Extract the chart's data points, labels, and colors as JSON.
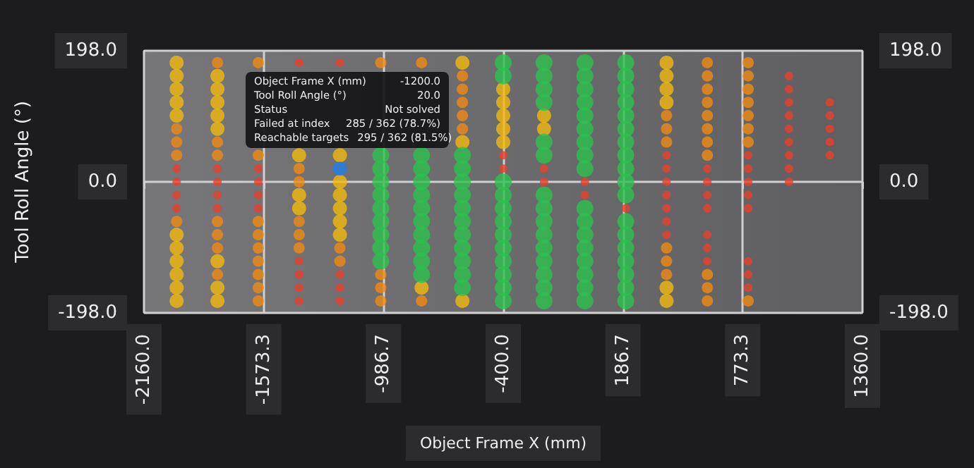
{
  "chart_data": {
    "type": "scatter",
    "xlabel": "Object Frame X (mm)",
    "ylabel": "Tool Roll Angle (°)",
    "xlim": [
      -2160,
      1360
    ],
    "xticks": [
      {
        "value": -2160,
        "label": "-2160.0"
      },
      {
        "value": -1573.3,
        "label": "-1573.3"
      },
      {
        "value": -986.7,
        "label": "-986.7"
      },
      {
        "value": -400,
        "label": "-400.0"
      },
      {
        "value": 186.7,
        "label": "186.7"
      },
      {
        "value": 773.3,
        "label": "773.3"
      },
      {
        "value": 1360,
        "label": "1360.0"
      }
    ],
    "ylim": [
      -198,
      198
    ],
    "yticks": [
      {
        "value": -198,
        "label": "-198.0"
      },
      {
        "value": 0,
        "label": "0.0"
      },
      {
        "value": 198,
        "label": "198.0"
      }
    ],
    "y2lim": [
      -198,
      198
    ],
    "y2ticks": [
      {
        "value": -198,
        "label": "-198.0"
      },
      {
        "value": 0,
        "label": "0.0"
      },
      {
        "value": 198,
        "label": "198.0"
      }
    ],
    "grid": true,
    "marker": "circle",
    "annotations": [
      "Object Frame X (mm)",
      "-1200.0",
      "Tool Roll Angle (°)",
      "20.0",
      "Status",
      "Not solved",
      "Failed at index",
      "285 / 362 (78.7%)",
      "Reachable targets",
      "295 / 362 (81.5%)"
    ],
    "series": [
      {
        "color": "#f2b90c",
        "x": [
          -2000,
          -2000,
          -2000,
          -2000,
          -2000,
          -2000,
          -2000,
          -2000,
          -2000,
          -2000,
          -2000,
          -1800,
          -1800,
          -1800,
          -1800,
          -1800,
          -1800,
          -1800,
          -1800,
          -1400,
          -1400,
          -1400,
          -1200,
          -1200,
          -1200,
          -1200,
          -1200,
          -1200,
          -800,
          -600,
          -600,
          -600,
          -400,
          -400,
          -400,
          -400,
          -400,
          -200,
          -200,
          400,
          400,
          400,
          400,
          400,
          400
        ],
        "values": [
          180,
          160,
          140,
          120,
          100,
          -80,
          -100,
          -120,
          -140,
          -160,
          -180,
          160,
          140,
          120,
          100,
          80,
          -120,
          -160,
          -180,
          40,
          -20,
          -40,
          40,
          0,
          -20,
          -40,
          -60,
          -80,
          -160,
          180,
          60,
          -180,
          140,
          120,
          100,
          80,
          60,
          100,
          80,
          180,
          160,
          140,
          120,
          -160,
          -180
        ]
      },
      {
        "color": "#f08a12",
        "x": [
          -2000,
          -2000,
          -2000,
          -2000,
          -1800,
          -1800,
          -1800,
          -1800,
          -1800,
          -1800,
          -1800,
          -1600,
          -1600,
          -1600,
          -1600,
          -1600,
          -1600,
          -1600,
          -1600,
          -1600,
          -1400,
          -1400,
          -1400,
          -1400,
          -1400,
          -1200,
          -1200,
          -1000,
          -1000,
          -1000,
          -1000,
          -800,
          -800,
          -600,
          -600,
          -600,
          -600,
          -600,
          400,
          400,
          400,
          400,
          400,
          400,
          600,
          600,
          600,
          600,
          600,
          600,
          600,
          600,
          600,
          600,
          600,
          800,
          800,
          800,
          800,
          800,
          800,
          800,
          800
        ],
        "values": [
          80,
          60,
          40,
          -60,
          180,
          60,
          40,
          -60,
          -80,
          -100,
          -140,
          180,
          40,
          -60,
          -80,
          -100,
          -120,
          -140,
          -160,
          -180,
          20,
          0,
          -60,
          -80,
          -100,
          -100,
          -120,
          180,
          -140,
          -160,
          -180,
          180,
          -180,
          160,
          140,
          120,
          100,
          80,
          100,
          80,
          60,
          -100,
          -120,
          -140,
          180,
          160,
          140,
          120,
          100,
          80,
          60,
          40,
          -140,
          -160,
          -180,
          180,
          160,
          140,
          120,
          100,
          80,
          60,
          -180
        ]
      },
      {
        "color": "#e8402a",
        "x": [
          -2000,
          -2000,
          -2000,
          -2000,
          -1800,
          -1800,
          -1800,
          -1800,
          -1600,
          -1600,
          -1600,
          -1600,
          -1400,
          -1400,
          -1400,
          -1400,
          -1400,
          -1200,
          -1200,
          -1200,
          -1200,
          -400,
          -400,
          -200,
          -200,
          0,
          0,
          200,
          400,
          400,
          400,
          400,
          400,
          400,
          400,
          600,
          600,
          600,
          600,
          600,
          600,
          600,
          800,
          800,
          800,
          800,
          800,
          800,
          800,
          800,
          1000,
          1000,
          1000,
          1000,
          1000,
          1000,
          1000,
          1000,
          1000,
          1200,
          1200,
          1200,
          1200,
          1200
        ],
        "values": [
          20,
          0,
          -20,
          -40,
          20,
          0,
          -20,
          -40,
          20,
          0,
          -20,
          -40,
          180,
          -120,
          -140,
          -160,
          -180,
          180,
          -140,
          -160,
          -180,
          40,
          20,
          20,
          0,
          0,
          -20,
          -40,
          40,
          20,
          0,
          -20,
          -40,
          -60,
          -80,
          20,
          0,
          -20,
          -40,
          -80,
          -100,
          -120,
          40,
          20,
          0,
          -20,
          -40,
          -120,
          -140,
          -160,
          160,
          140,
          120,
          100,
          80,
          60,
          40,
          20,
          0,
          120,
          100,
          80,
          60,
          40
        ]
      },
      {
        "color": "#2cc24c",
        "x": [
          -1000,
          -1000,
          -1000,
          -1000,
          -1000,
          -1000,
          -1000,
          -1000,
          -1000,
          -800,
          -800,
          -800,
          -800,
          -800,
          -800,
          -800,
          -800,
          -800,
          -800,
          -600,
          -600,
          -600,
          -600,
          -600,
          -600,
          -600,
          -600,
          -600,
          -600,
          -600,
          -400,
          -400,
          -400,
          -400,
          -400,
          -400,
          -400,
          -400,
          -400,
          -400,
          -400,
          -400,
          -200,
          -200,
          -200,
          -200,
          -200,
          -200,
          -200,
          -200,
          -200,
          -200,
          -200,
          -200,
          -200,
          -200,
          -200,
          0,
          0,
          0,
          0,
          0,
          0,
          0,
          0,
          0,
          0,
          0,
          0,
          0,
          0,
          0,
          0,
          0,
          200,
          200,
          200,
          200,
          200,
          200,
          200,
          200,
          200,
          200,
          200,
          200,
          200,
          200,
          200,
          200,
          200,
          200
        ],
        "values": [
          40,
          20,
          0,
          -20,
          -40,
          -60,
          -80,
          -100,
          -120,
          40,
          20,
          0,
          -20,
          -40,
          -60,
          -80,
          -100,
          -120,
          -140,
          40,
          20,
          0,
          -20,
          -40,
          -60,
          -80,
          -100,
          -120,
          -140,
          -160,
          180,
          160,
          0,
          -20,
          -40,
          -60,
          -80,
          -100,
          -120,
          -140,
          -160,
          -180,
          180,
          160,
          140,
          120,
          60,
          40,
          -20,
          -40,
          -60,
          -80,
          -100,
          -120,
          -140,
          -160,
          -180,
          180,
          160,
          140,
          120,
          100,
          80,
          60,
          40,
          20,
          -40,
          -60,
          -80,
          -100,
          -120,
          -140,
          -160,
          -180,
          180,
          160,
          140,
          120,
          100,
          80,
          60,
          40,
          20,
          0,
          -20,
          -60,
          -80,
          -100,
          -120,
          -140,
          -160,
          -180
        ]
      },
      {
        "color": "#1f80e8",
        "x": [
          -1200
        ],
        "values": [
          20
        ]
      }
    ]
  }
}
